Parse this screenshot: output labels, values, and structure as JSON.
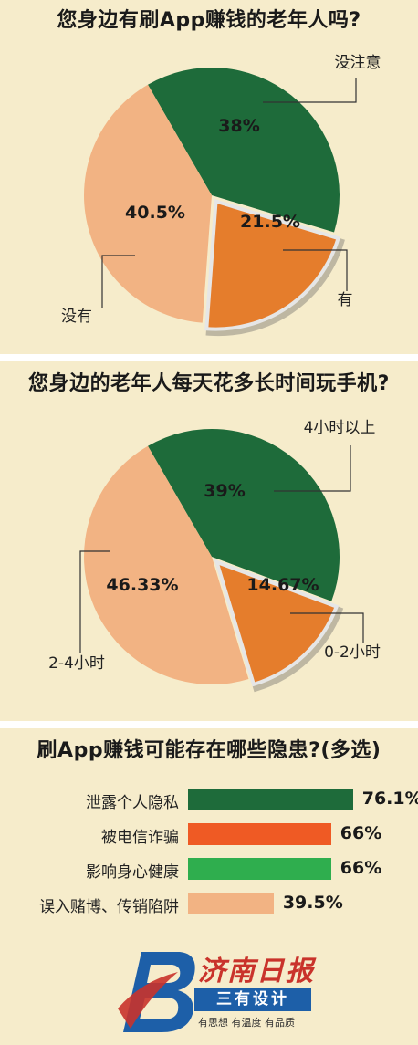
{
  "logo": {
    "name": "济南日报",
    "banner": "三有设计",
    "slogan": "有思想 有温度 有品质"
  },
  "chart_data": [
    {
      "type": "pie",
      "title": "您身边有刷App赚钱的老年人吗?",
      "slices": [
        {
          "label": "没注意",
          "value": 38,
          "display": "38%",
          "color": "#1e6b3a"
        },
        {
          "label": "有",
          "value": 21.5,
          "display": "21.5%",
          "color": "#e57d2c",
          "exploded": true
        },
        {
          "label": "没有",
          "value": 40.5,
          "display": "40.5%",
          "color": "#f2b383"
        }
      ]
    },
    {
      "type": "pie",
      "title": "您身边的老年人每天花多长时间玩手机?",
      "slices": [
        {
          "label": "4小时以上",
          "value": 39,
          "display": "39%",
          "color": "#1e6b3a"
        },
        {
          "label": "0-2小时",
          "value": 14.67,
          "display": "14.67%",
          "color": "#e57d2c",
          "exploded": true
        },
        {
          "label": "2-4小时",
          "value": 46.33,
          "display": "46.33%",
          "color": "#f2b383"
        }
      ]
    },
    {
      "type": "bar",
      "orientation": "horizontal",
      "title": "刷App赚钱可能存在哪些隐患?(多选)",
      "categories": [
        "泄露个人隐私",
        "被电信诈骗",
        "影响身心健康",
        "误入赌博、传销陷阱"
      ],
      "values": [
        76.1,
        66,
        66,
        39.5
      ],
      "value_labels": [
        "76.1%",
        "66%",
        "66%",
        "39.5%"
      ],
      "colors": [
        "#1e6b3a",
        "#ef5a24",
        "#2fae4e",
        "#f2b383"
      ]
    }
  ]
}
